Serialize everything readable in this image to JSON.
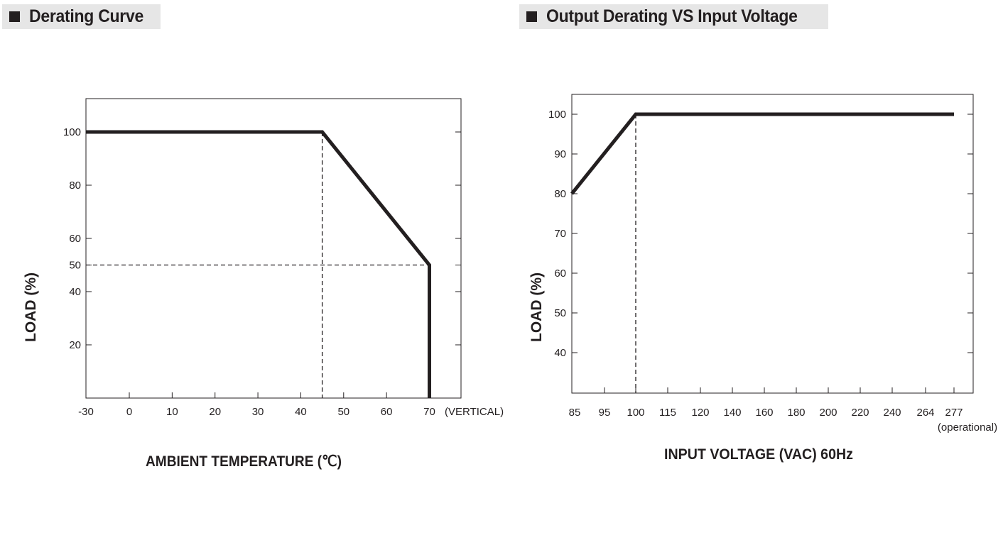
{
  "headers": {
    "left": "Derating Curve",
    "right": "Output Derating VS Input Voltage"
  },
  "chart_data": [
    {
      "type": "line",
      "title": "Derating Curve",
      "xlabel": "AMBIENT TEMPERATURE (℃)",
      "ylabel": "LOAD (%)",
      "xlim": [
        -30,
        75
      ],
      "ylim": [
        0,
        110
      ],
      "x_ticks": [
        -30,
        0,
        10,
        20,
        30,
        40,
        50,
        60,
        70
      ],
      "x_tick_labels": [
        "-30",
        "0",
        "10",
        "20",
        "30",
        "40",
        "50",
        "60",
        "70"
      ],
      "x_suffix": "(VERTICAL)",
      "y_ticks": [
        20,
        40,
        50,
        60,
        80,
        100
      ],
      "y_tick_labels": [
        "20",
        "40",
        "50",
        "60",
        "80",
        "100"
      ],
      "series": [
        {
          "x": [
            -30,
            45,
            70,
            70
          ],
          "y": [
            100,
            100,
            50,
            0
          ]
        }
      ],
      "reference_lines": [
        {
          "x": [
            45,
            45
          ],
          "y": [
            100,
            0
          ]
        },
        {
          "x": [
            -30,
            70
          ],
          "y": [
            50,
            50
          ]
        }
      ],
      "grid": false,
      "line_color": "#231f20"
    },
    {
      "type": "line",
      "title": "Output Derating VS Input Voltage",
      "xlabel": "INPUT VOLTAGE (VAC) 60Hz",
      "ylabel": "LOAD (%)",
      "x_scale": "categorical",
      "x_ticks": [
        "85",
        "95",
        "100",
        "115",
        "120",
        "140",
        "160",
        "180",
        "200",
        "220",
        "240",
        "264",
        "277"
      ],
      "x_tick_sublabel": "(operational)",
      "y_ticks": [
        40,
        50,
        60,
        70,
        80,
        90,
        100
      ],
      "y_tick_labels": [
        "40",
        "50",
        "60",
        "70",
        "80",
        "90",
        "100"
      ],
      "ylim": [
        30,
        105
      ],
      "series": [
        {
          "x": [
            "85",
            "100",
            "277"
          ],
          "y": [
            80,
            100,
            100
          ]
        }
      ],
      "reference_lines": [
        {
          "x": [
            "100",
            "100"
          ],
          "y": [
            100,
            30
          ]
        }
      ],
      "grid": false,
      "line_color": "#231f20"
    }
  ]
}
